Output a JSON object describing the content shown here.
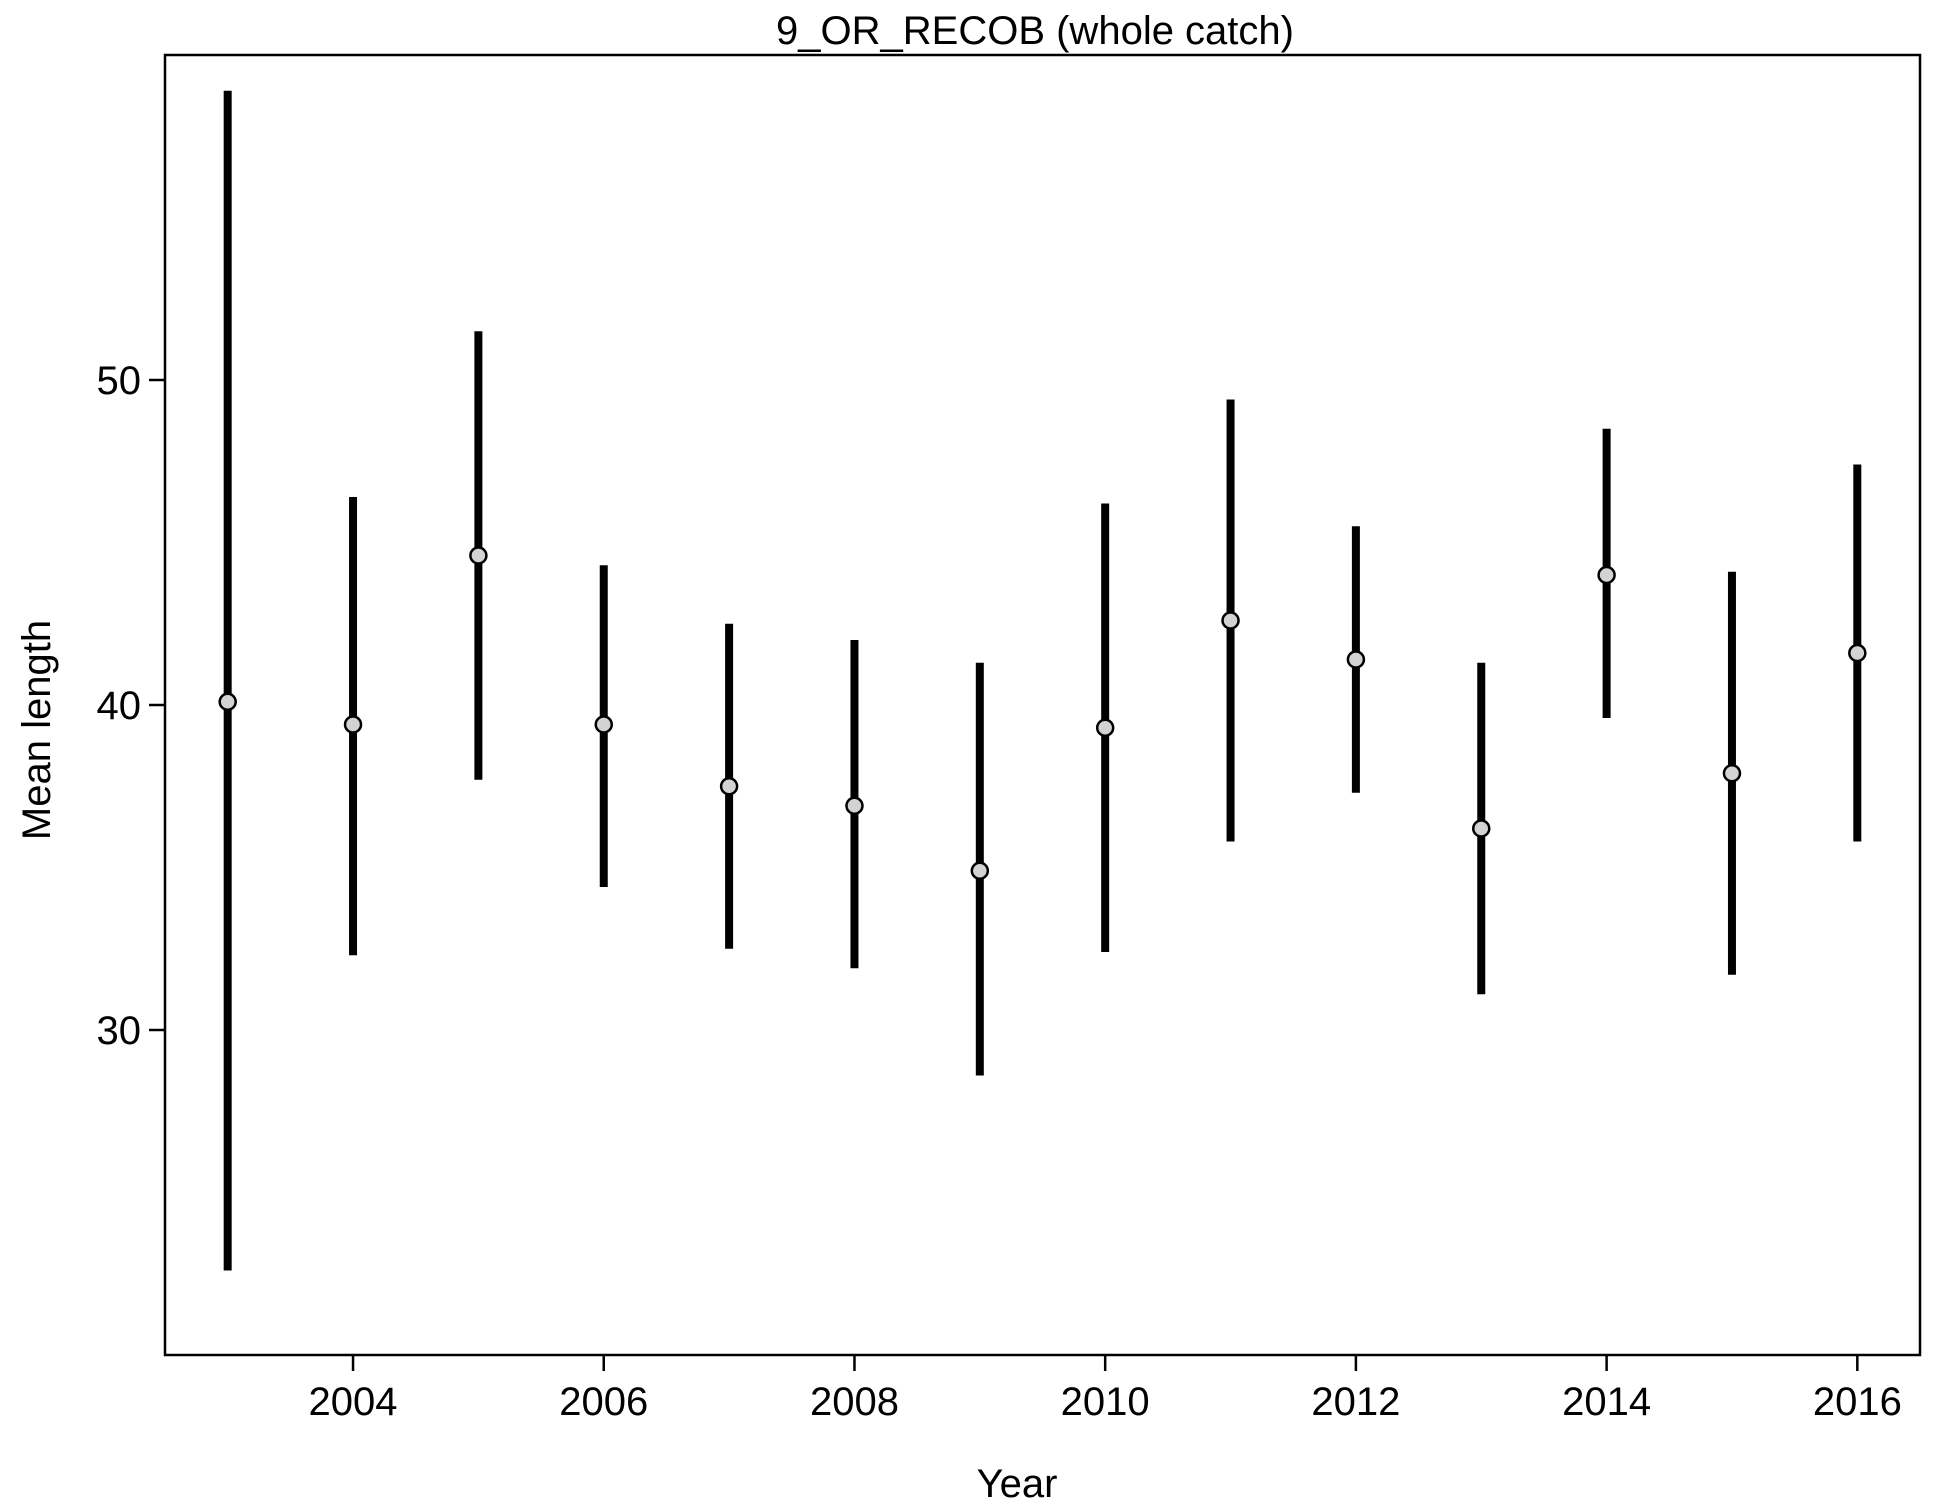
{
  "chart_data": {
    "type": "scatter",
    "title": "9_OR_RECOB (whole catch)",
    "xlabel": "Year",
    "ylabel": "Mean length",
    "xlim": [
      2002.5,
      2016.5
    ],
    "ylim": [
      20,
      60
    ],
    "x_ticks": [
      2004,
      2006,
      2008,
      2010,
      2012,
      2014,
      2016
    ],
    "y_ticks": [
      30,
      40,
      50
    ],
    "grid": false,
    "legend": "none",
    "colors": {
      "error_bar": "#000000",
      "point_fill": "#d3d3d3",
      "point_stroke": "#000000"
    },
    "series": [
      {
        "x": [
          2003,
          2004,
          2005,
          2006,
          2007,
          2008,
          2009,
          2010,
          2011,
          2012,
          2013,
          2014,
          2015,
          2016
        ],
        "y": [
          40.1,
          39.4,
          44.6,
          39.4,
          37.5,
          36.9,
          34.9,
          39.3,
          42.6,
          41.4,
          36.2,
          44.0,
          37.9,
          41.6
        ],
        "lower": [
          22.6,
          32.3,
          37.7,
          34.4,
          32.5,
          31.9,
          28.6,
          32.4,
          35.8,
          37.3,
          31.1,
          39.6,
          31.7,
          35.8
        ],
        "upper": [
          58.9,
          46.4,
          51.5,
          44.3,
          42.5,
          42.0,
          41.3,
          46.2,
          49.4,
          45.5,
          41.3,
          48.5,
          44.1,
          47.4
        ]
      }
    ]
  }
}
